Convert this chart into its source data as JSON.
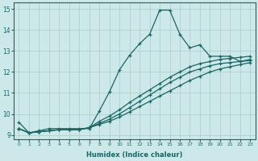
{
  "xlabel": "Humidex (Indice chaleur)",
  "bg_color": "#cce8e8",
  "grid_color": "#aacccc",
  "line_color": "#1a6666",
  "xlim": [
    -0.5,
    23.5
  ],
  "ylim": [
    8.8,
    15.3
  ],
  "xtick_labels": [
    "0",
    "1",
    "2",
    "3",
    "4",
    "5",
    "6",
    "7",
    "8",
    "9",
    "10",
    "11",
    "12",
    "13",
    "14",
    "15",
    "16",
    "17",
    "18",
    "19",
    "20",
    "21",
    "22",
    "23"
  ],
  "ytick_labels": [
    "9",
    "10",
    "11",
    "12",
    "13",
    "14",
    "15"
  ],
  "series": [
    {
      "x": [
        0,
        1,
        2,
        3,
        4,
        5,
        6,
        7,
        8,
        9,
        10,
        11,
        12,
        13,
        14,
        15,
        16,
        17,
        18,
        19,
        20,
        21,
        22,
        23
      ],
      "y": [
        9.6,
        9.1,
        9.2,
        9.3,
        9.3,
        9.3,
        9.3,
        9.3,
        10.15,
        11.05,
        12.1,
        12.8,
        13.35,
        13.8,
        14.95,
        14.95,
        13.8,
        13.15,
        13.3,
        12.75,
        12.75,
        12.75,
        12.5,
        12.6
      ]
    },
    {
      "x": [
        0,
        1,
        2,
        3,
        4,
        5,
        6,
        7,
        8,
        9,
        10,
        11,
        12,
        13,
        14,
        15,
        16,
        17,
        18,
        19,
        20,
        21,
        22,
        23
      ],
      "y": [
        9.3,
        9.1,
        9.15,
        9.2,
        9.25,
        9.25,
        9.25,
        9.35,
        9.65,
        9.9,
        10.2,
        10.55,
        10.85,
        11.15,
        11.45,
        11.75,
        12.0,
        12.25,
        12.4,
        12.5,
        12.6,
        12.65,
        12.7,
        12.75
      ]
    },
    {
      "x": [
        0,
        1,
        2,
        3,
        4,
        5,
        6,
        7,
        8,
        9,
        10,
        11,
        12,
        13,
        14,
        15,
        16,
        17,
        18,
        19,
        20,
        21,
        22,
        23
      ],
      "y": [
        9.3,
        9.1,
        9.15,
        9.2,
        9.25,
        9.25,
        9.25,
        9.35,
        9.55,
        9.75,
        10.0,
        10.3,
        10.6,
        10.9,
        11.2,
        11.5,
        11.75,
        12.0,
        12.15,
        12.3,
        12.4,
        12.45,
        12.5,
        12.55
      ]
    },
    {
      "x": [
        0,
        1,
        2,
        3,
        4,
        5,
        6,
        7,
        8,
        9,
        10,
        11,
        12,
        13,
        14,
        15,
        16,
        17,
        18,
        19,
        20,
        21,
        22,
        23
      ],
      "y": [
        9.3,
        9.1,
        9.15,
        9.2,
        9.25,
        9.25,
        9.25,
        9.35,
        9.5,
        9.65,
        9.85,
        10.1,
        10.35,
        10.6,
        10.85,
        11.1,
        11.35,
        11.6,
        11.8,
        12.0,
        12.15,
        12.25,
        12.35,
        12.45
      ]
    }
  ]
}
